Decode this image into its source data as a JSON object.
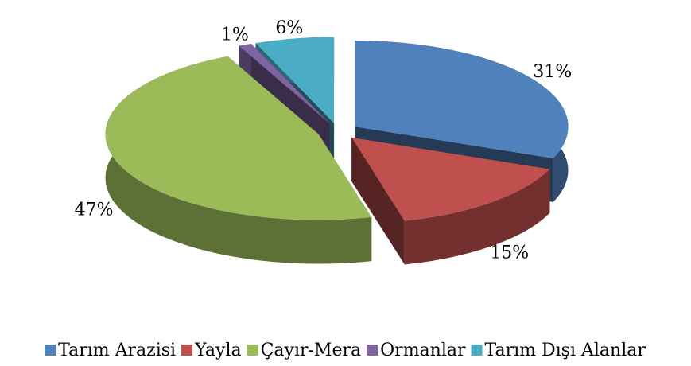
{
  "chart_data": {
    "type": "pie",
    "three_d": true,
    "exploded": true,
    "categories": [
      "Tarım Arazisi",
      "Yayla",
      "Çayır-Mera",
      "Ormanlar",
      "Tarım Dışı Alanlar"
    ],
    "values": [
      31,
      15,
      47,
      1,
      6
    ],
    "value_labels": [
      "31%",
      "15%",
      "47%",
      "1%",
      "6%"
    ],
    "colors": [
      "#4f81bd",
      "#c0504d",
      "#9bbb59",
      "#8064a2",
      "#4bacc6"
    ],
    "legend": "bottom"
  }
}
